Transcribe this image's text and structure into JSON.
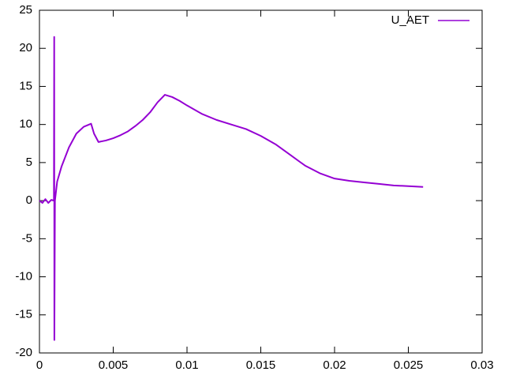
{
  "chart_data": {
    "type": "line",
    "x": [
      0,
      0.0002,
      0.0004,
      0.0006,
      0.0008,
      0.00098,
      0.001,
      0.00101,
      0.00105,
      0.0012,
      0.0015,
      0.002,
      0.0025,
      0.003,
      0.0035,
      0.0037,
      0.004,
      0.0045,
      0.005,
      0.0055,
      0.006,
      0.0065,
      0.007,
      0.0075,
      0.008,
      0.0085,
      0.009,
      0.0095,
      0.01,
      0.011,
      0.012,
      0.013,
      0.014,
      0.015,
      0.016,
      0.017,
      0.018,
      0.019,
      0.02,
      0.021,
      0.022,
      0.023,
      0.024,
      0.025,
      0.026
    ],
    "series": [
      {
        "name": "U_AET",
        "color": "#9400d3",
        "values": [
          0,
          -0.3,
          0.2,
          -0.3,
          0.1,
          0,
          21.5,
          -18.3,
          0,
          2.5,
          4.5,
          7,
          8.8,
          9.7,
          10.1,
          8.8,
          7.7,
          7.9,
          8.2,
          8.6,
          9.1,
          9.8,
          10.6,
          11.6,
          12.9,
          13.9,
          13.6,
          13.1,
          12.5,
          11.4,
          10.6,
          10,
          9.4,
          8.5,
          7.4,
          6,
          4.6,
          3.6,
          2.9,
          2.6,
          2.4,
          2.2,
          2,
          1.9,
          1.8
        ]
      }
    ],
    "xlim": [
      0,
      0.03
    ],
    "xticks": [
      0,
      0.005,
      0.01,
      0.015,
      0.02,
      0.025,
      0.03
    ],
    "ylim": [
      -20,
      25
    ],
    "yticks": [
      -20,
      -15,
      -10,
      -5,
      0,
      5,
      10,
      15,
      20,
      25
    ],
    "grid": false,
    "legend": "top-right"
  }
}
